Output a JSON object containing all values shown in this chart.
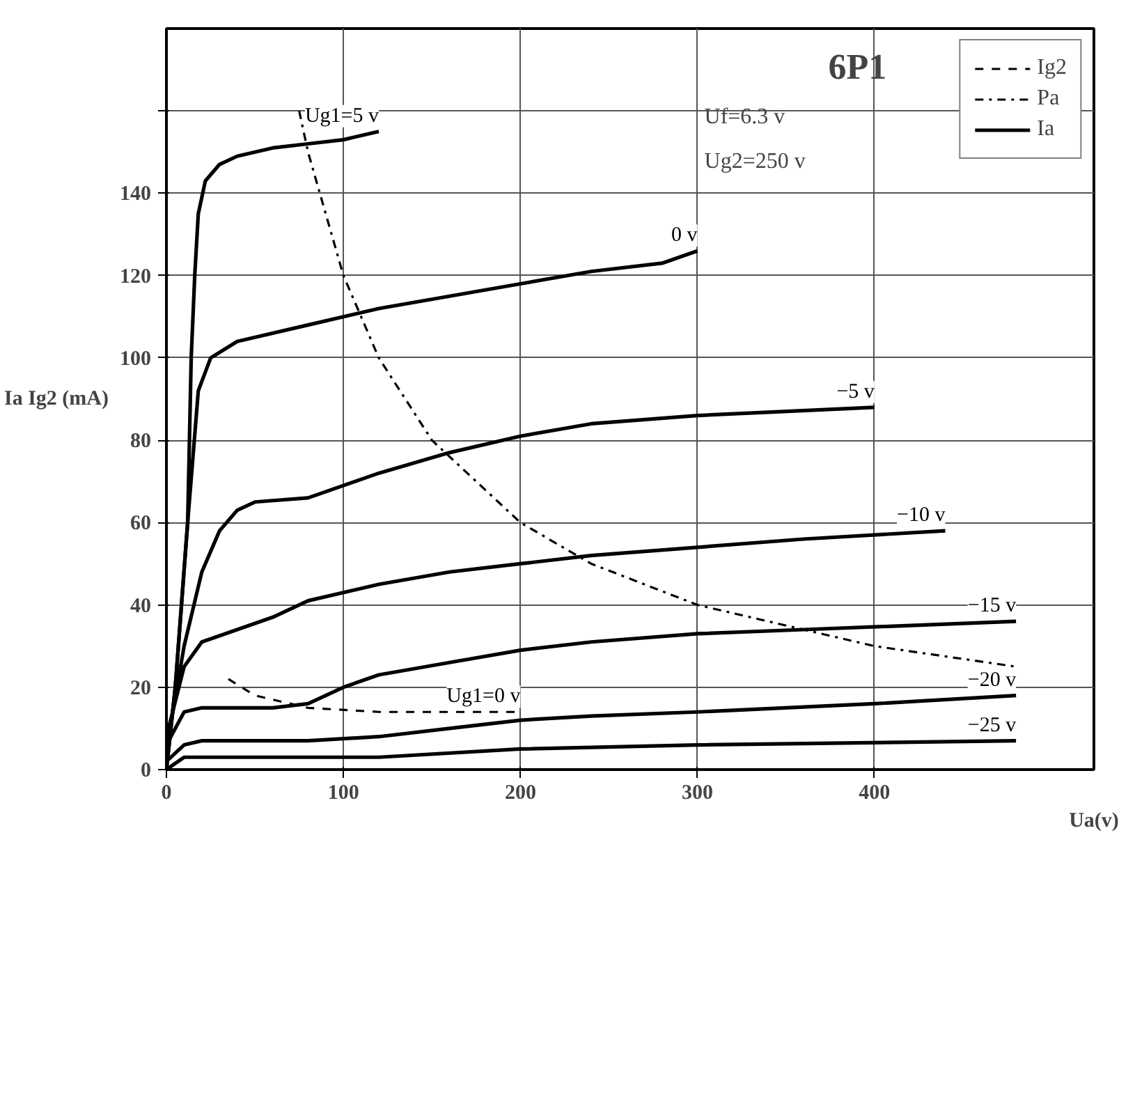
{
  "chart_data": {
    "type": "line",
    "title": "6P1",
    "xlabel": "Ua(v)",
    "ylabel": "Ia Ig2 (mA)",
    "xlim": [
      0,
      524
    ],
    "ylim": [
      0,
      180
    ],
    "xticks": [
      0,
      100,
      200,
      300,
      400
    ],
    "yticks": [
      0,
      20,
      40,
      60,
      80,
      100,
      120,
      140,
      {
        "value": 160,
        "label": null
      }
    ],
    "grid": true,
    "legend": "top right",
    "line_style": "solid",
    "annotations": [
      "Uf=6.3 v",
      "Ug2=250 v",
      "Ig2",
      "Ia"
    ],
    "series": [
      {
        "name": "Ug1=5 v",
        "color": "#000000",
        "x": [
          0,
          5,
          12,
          14,
          16,
          18,
          22,
          30,
          40,
          60,
          80,
          100,
          120
        ],
        "values": [
          0,
          20,
          60,
          100,
          120,
          135,
          143,
          147,
          149,
          151,
          152,
          153,
          155
        ]
      },
      {
        "name": "0 v",
        "color": "#000000",
        "x": [
          0,
          5,
          12,
          18,
          25,
          40,
          80,
          120,
          160,
          200,
          240,
          280,
          300
        ],
        "values": [
          0,
          20,
          60,
          92,
          100,
          104,
          108,
          112,
          115,
          118,
          121,
          123,
          126
        ]
      },
      {
        "name": "−5 v",
        "color": "#000000",
        "x": [
          0,
          10,
          20,
          30,
          40,
          50,
          80,
          120,
          160,
          200,
          240,
          300,
          400
        ],
        "values": [
          5,
          30,
          48,
          58,
          63,
          65,
          66,
          72,
          77,
          81,
          84,
          86,
          88
        ]
      },
      {
        "name": "−10 v",
        "color": "#000000",
        "x": [
          0,
          10,
          20,
          40,
          60,
          80,
          120,
          160,
          200,
          240,
          300,
          360,
          440
        ],
        "values": [
          8,
          25,
          31,
          34,
          37,
          41,
          45,
          48,
          50,
          52,
          54,
          56,
          58
        ]
      },
      {
        "name": "−15 v",
        "color": "#000000",
        "x": [
          0,
          10,
          20,
          40,
          60,
          80,
          100,
          120,
          160,
          200,
          240,
          300,
          360,
          480
        ],
        "values": [
          6,
          14,
          15,
          15,
          15,
          16,
          20,
          23,
          26,
          29,
          31,
          33,
          34,
          36
        ]
      },
      {
        "name": "−20 v",
        "color": "#000000",
        "x": [
          0,
          10,
          20,
          40,
          80,
          120,
          160,
          200,
          240,
          300,
          400,
          480
        ],
        "values": [
          2,
          6,
          7,
          7,
          7,
          8,
          10,
          12,
          13,
          14,
          16,
          18
        ]
      },
      {
        "name": "−25 v",
        "color": "#000000",
        "x": [
          0,
          10,
          20,
          40,
          80,
          120,
          200,
          300,
          480
        ],
        "values": [
          0,
          3,
          3,
          3,
          3,
          3,
          5,
          6,
          7
        ]
      },
      {
        "name": "Ug1=0 v",
        "color": "#000000",
        "line_style": "dashed",
        "x": [
          35,
          50,
          80,
          120,
          200
        ],
        "values": [
          22,
          18,
          15,
          14,
          14
        ]
      },
      {
        "name": "Pa",
        "color": "#000000",
        "line_style": "dashdot",
        "x": [
          75,
          80,
          100,
          120,
          150,
          200,
          240,
          300,
          400,
          480
        ],
        "values": [
          160,
          150,
          120,
          100,
          80,
          60,
          50,
          40,
          30,
          25
        ]
      }
    ]
  }
}
